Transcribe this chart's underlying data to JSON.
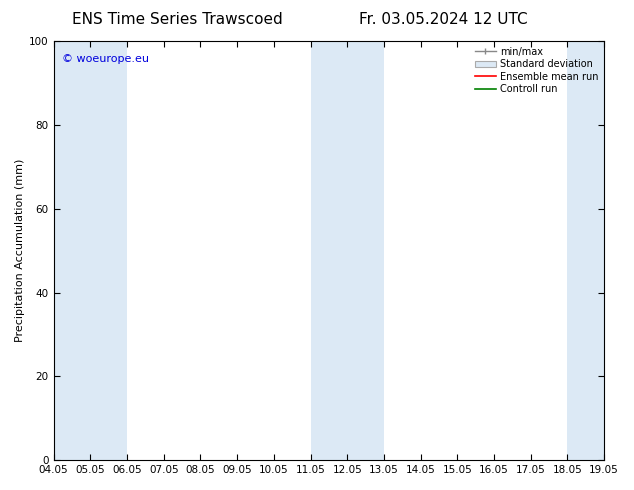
{
  "title_left": "ENS Time Series Trawscoed",
  "title_right": "Fr. 03.05.2024 12 UTC",
  "ylabel": "Precipitation Accumulation (mm)",
  "watermark": "© woeurope.eu",
  "watermark_color": "#0000dd",
  "ylim": [
    0,
    100
  ],
  "yticks": [
    0,
    20,
    40,
    60,
    80,
    100
  ],
  "x_start": 4.05,
  "x_end": 19.05,
  "xtick_labels": [
    "04.05",
    "05.05",
    "06.05",
    "07.05",
    "08.05",
    "09.05",
    "10.05",
    "11.05",
    "12.05",
    "13.05",
    "14.05",
    "15.05",
    "16.05",
    "17.05",
    "18.05",
    "19.05"
  ],
  "xtick_positions": [
    4.05,
    5.05,
    6.05,
    7.05,
    8.05,
    9.05,
    10.05,
    11.05,
    12.05,
    13.05,
    14.05,
    15.05,
    16.05,
    17.05,
    18.05,
    19.05
  ],
  "shaded_regions": [
    {
      "x_start": 4.05,
      "x_end": 6.05,
      "color": "#dce9f5"
    },
    {
      "x_start": 11.05,
      "x_end": 13.05,
      "color": "#dce9f5"
    },
    {
      "x_start": 18.05,
      "x_end": 19.05,
      "color": "#dce9f5"
    }
  ],
  "legend_entries": [
    {
      "label": "min/max",
      "type": "errorbar",
      "color": "#aaaaaa"
    },
    {
      "label": "Standard deviation",
      "type": "box",
      "facecolor": "#dce9f5",
      "edgecolor": "#aaaaaa"
    },
    {
      "label": "Ensemble mean run",
      "type": "line",
      "color": "red"
    },
    {
      "label": "Controll run",
      "type": "line",
      "color": "green"
    }
  ],
  "bg_color": "#ffffff",
  "spine_color": "#000000",
  "title_fontsize": 11,
  "axis_fontsize": 8,
  "tick_fontsize": 7.5,
  "legend_fontsize": 7,
  "watermark_fontsize": 8
}
